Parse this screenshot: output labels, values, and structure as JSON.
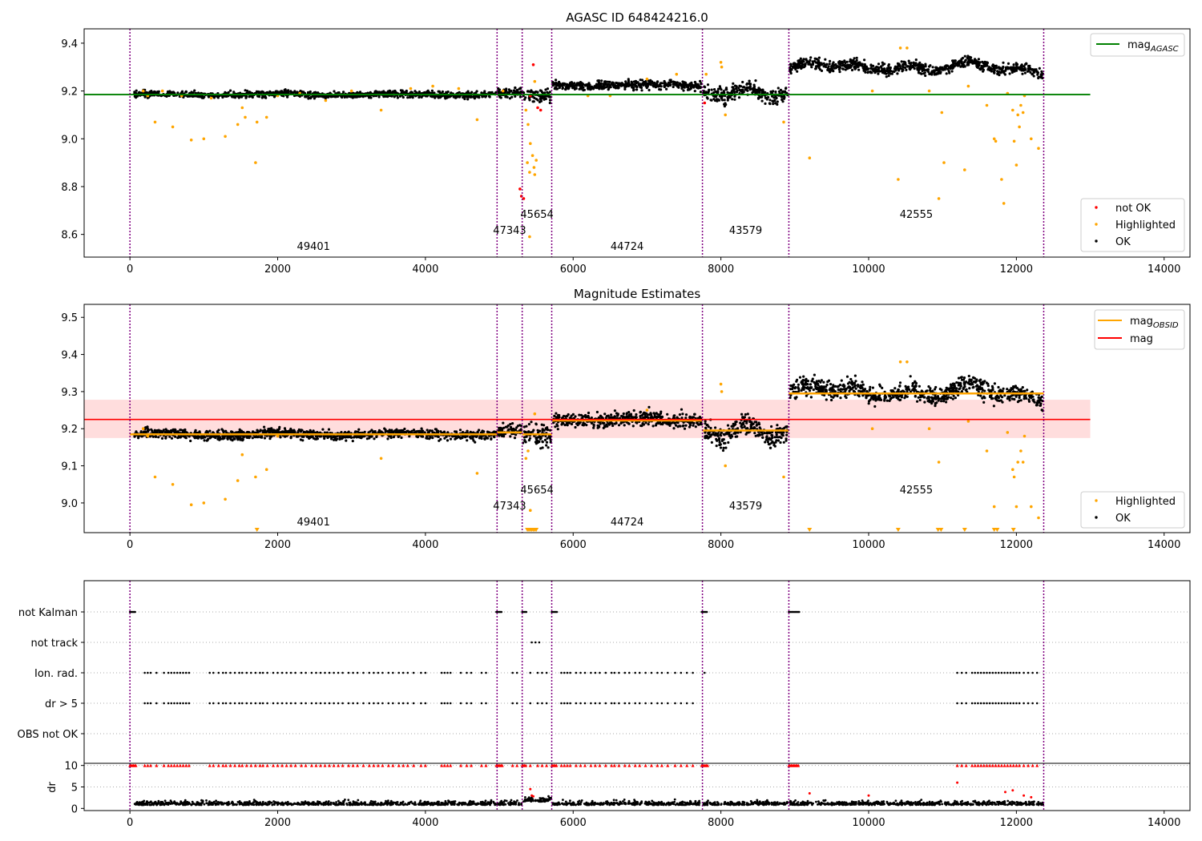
{
  "chart_data": [
    {
      "type": "scatter",
      "title": "AGASC ID 648424216.0",
      "xlim": [
        -620,
        14350
      ],
      "ylim": [
        8.505,
        9.46
      ],
      "x_ticks": [
        0,
        2000,
        4000,
        6000,
        8000,
        10000,
        12000,
        14000
      ],
      "y_ticks": [
        8.6,
        8.8,
        9.0,
        9.2,
        9.4
      ],
      "y_tick_labels": [
        "8.6",
        "8.8",
        "9.0",
        "9.2",
        "9.4"
      ],
      "obs_boundaries": [
        0,
        4970,
        5310,
        5710,
        7750,
        8920,
        12370
      ],
      "obsid_labels": [
        {
          "text": "49401",
          "x": 2485,
          "level": 0
        },
        {
          "text": "47343",
          "x": 5140,
          "level": 1
        },
        {
          "text": "45654",
          "x": 5510,
          "level": 2
        },
        {
          "text": "44724",
          "x": 6730,
          "level": 0
        },
        {
          "text": "43579",
          "x": 8335,
          "level": 1
        },
        {
          "text": "42555",
          "x": 10645,
          "level": 2
        }
      ],
      "reference_line": {
        "name": "mag_AGASC",
        "y": 9.185,
        "x": [
          -620,
          13000
        ],
        "color": "#008000"
      },
      "segments": [
        {
          "x": [
            60,
            4960
          ],
          "mean": 9.185,
          "spread": 0.012,
          "shape": "flat"
        },
        {
          "x": [
            4980,
            5300
          ],
          "mean": 9.19,
          "spread": 0.018,
          "shape": "flat"
        },
        {
          "x": [
            5320,
            5700
          ],
          "mean": 9.18,
          "spread": 0.03,
          "shape": "flat"
        },
        {
          "x": [
            5720,
            7740
          ],
          "mean": 9.225,
          "spread": 0.018,
          "shape": "flat"
        },
        {
          "x": [
            7760,
            8910
          ],
          "mean": 9.19,
          "spread": 0.03,
          "shape": "dip"
        },
        {
          "x": [
            8930,
            12360
          ],
          "mean": 9.295,
          "spread": 0.022,
          "shape": "wave"
        }
      ],
      "highlighted_points": [
        [
          180,
          9.2
        ],
        [
          240,
          9.18
        ],
        [
          340,
          9.07
        ],
        [
          440,
          9.2
        ],
        [
          580,
          9.05
        ],
        [
          700,
          9.18
        ],
        [
          830,
          8.995
        ],
        [
          1000,
          9.0
        ],
        [
          1100,
          9.17
        ],
        [
          1290,
          9.01
        ],
        [
          1460,
          9.06
        ],
        [
          1520,
          9.13
        ],
        [
          1560,
          9.09
        ],
        [
          1700,
          8.9
        ],
        [
          1720,
          9.07
        ],
        [
          1850,
          9.09
        ],
        [
          2000,
          9.18
        ],
        [
          2300,
          9.19
        ],
        [
          2650,
          9.16
        ],
        [
          3000,
          9.2
        ],
        [
          3400,
          9.12
        ],
        [
          3800,
          9.21
        ],
        [
          4100,
          9.22
        ],
        [
          4450,
          9.21
        ],
        [
          4700,
          9.08
        ],
        [
          5050,
          9.2
        ],
        [
          5360,
          9.12
        ],
        [
          5390,
          9.06
        ],
        [
          5420,
          8.98
        ],
        [
          5450,
          8.93
        ],
        [
          5380,
          8.9
        ],
        [
          5470,
          8.88
        ],
        [
          5410,
          8.86
        ],
        [
          5480,
          8.85
        ],
        [
          5500,
          8.91
        ],
        [
          5410,
          8.59
        ],
        [
          5480,
          9.24
        ],
        [
          6200,
          9.18
        ],
        [
          6500,
          9.18
        ],
        [
          7000,
          9.25
        ],
        [
          7400,
          9.27
        ],
        [
          7800,
          9.27
        ],
        [
          8000,
          9.32
        ],
        [
          8010,
          9.3
        ],
        [
          8060,
          9.1
        ],
        [
          8850,
          9.07
        ],
        [
          9200,
          8.92
        ],
        [
          10050,
          9.2
        ],
        [
          10400,
          8.83
        ],
        [
          10430,
          9.38
        ],
        [
          10520,
          9.38
        ],
        [
          10820,
          9.2
        ],
        [
          10950,
          8.75
        ],
        [
          10990,
          9.11
        ],
        [
          11020,
          8.9
        ],
        [
          11300,
          8.87
        ],
        [
          11350,
          9.22
        ],
        [
          11600,
          9.14
        ],
        [
          11700,
          9.0
        ],
        [
          11720,
          8.99
        ],
        [
          11800,
          8.83
        ],
        [
          11830,
          8.73
        ],
        [
          11880,
          9.19
        ],
        [
          11950,
          9.12
        ],
        [
          11970,
          8.99
        ],
        [
          12000,
          8.89
        ],
        [
          12020,
          9.1
        ],
        [
          12040,
          9.05
        ],
        [
          12060,
          9.14
        ],
        [
          12090,
          9.11
        ],
        [
          12110,
          9.18
        ],
        [
          12200,
          9.0
        ],
        [
          12300,
          8.96
        ]
      ],
      "not_ok_points": [
        [
          5280,
          8.79
        ],
        [
          5300,
          8.76
        ],
        [
          5330,
          8.75
        ],
        [
          5420,
          9.18
        ],
        [
          5460,
          9.31
        ],
        [
          5520,
          9.13
        ],
        [
          5560,
          9.12
        ],
        [
          7780,
          9.15
        ]
      ],
      "legend": {
        "position": "lower right",
        "entries": [
          "not OK",
          "Highlighted",
          "OK"
        ]
      }
    },
    {
      "type": "scatter",
      "title": "Magnitude Estimates",
      "xlim": [
        -620,
        14350
      ],
      "ylim": [
        8.92,
        9.535
      ],
      "x_ticks": [
        0,
        2000,
        4000,
        6000,
        8000,
        10000,
        12000,
        14000
      ],
      "y_ticks": [
        9.0,
        9.1,
        9.2,
        9.3,
        9.4,
        9.5
      ],
      "y_tick_labels": [
        "9.0",
        "9.1",
        "9.2",
        "9.3",
        "9.4",
        "9.5"
      ],
      "obs_boundaries": [
        0,
        4970,
        5310,
        5710,
        7750,
        8920,
        12370
      ],
      "obsid_labels": [
        {
          "text": "49401",
          "x": 2485,
          "level": 0
        },
        {
          "text": "47343",
          "x": 5140,
          "level": 1
        },
        {
          "text": "45654",
          "x": 5510,
          "level": 2
        },
        {
          "text": "44724",
          "x": 6730,
          "level": 0
        },
        {
          "text": "43579",
          "x": 8335,
          "level": 1
        },
        {
          "text": "42555",
          "x": 10645,
          "level": 2
        }
      ],
      "mag_line": {
        "name": "mag",
        "y": 9.225,
        "band": [
          9.175,
          9.278
        ],
        "x": [
          -620,
          13000
        ],
        "color": "#ff0000",
        "band_color": "#ffdddd"
      },
      "obsid_mags": [
        {
          "x": [
            0,
            4970
          ],
          "mag": 9.185
        },
        {
          "x": [
            4970,
            5310
          ],
          "mag": 9.19
        },
        {
          "x": [
            5310,
            5710
          ],
          "mag": 9.185
        },
        {
          "x": [
            5710,
            7750
          ],
          "mag": 9.222
        },
        {
          "x": [
            7750,
            8920
          ],
          "mag": 9.195
        },
        {
          "x": [
            8920,
            12370
          ],
          "mag": 9.295
        }
      ],
      "segments": [
        {
          "x": [
            60,
            4960
          ],
          "mean": 9.185,
          "spread": 0.012,
          "shape": "flat"
        },
        {
          "x": [
            4980,
            5300
          ],
          "mean": 9.19,
          "spread": 0.018,
          "shape": "flat"
        },
        {
          "x": [
            5320,
            5700
          ],
          "mean": 9.18,
          "spread": 0.03,
          "shape": "flat"
        },
        {
          "x": [
            5720,
            7740
          ],
          "mean": 9.225,
          "spread": 0.018,
          "shape": "flat"
        },
        {
          "x": [
            7760,
            8910
          ],
          "mean": 9.19,
          "spread": 0.03,
          "shape": "dip"
        },
        {
          "x": [
            8930,
            12360
          ],
          "mean": 9.295,
          "spread": 0.022,
          "shape": "wave"
        }
      ],
      "highlighted_points": [
        [
          180,
          9.2
        ],
        [
          240,
          9.18
        ],
        [
          340,
          9.07
        ],
        [
          580,
          9.05
        ],
        [
          830,
          8.995
        ],
        [
          1000,
          9.0
        ],
        [
          1290,
          9.01
        ],
        [
          1460,
          9.06
        ],
        [
          1520,
          9.13
        ],
        [
          1700,
          9.07
        ],
        [
          1850,
          9.09
        ],
        [
          2000,
          9.18
        ],
        [
          3400,
          9.12
        ],
        [
          4700,
          9.08
        ],
        [
          5360,
          9.12
        ],
        [
          5390,
          9.14
        ],
        [
          5420,
          8.98
        ],
        [
          5480,
          9.24
        ],
        [
          7000,
          9.25
        ],
        [
          8000,
          9.32
        ],
        [
          8010,
          9.3
        ],
        [
          8060,
          9.1
        ],
        [
          8850,
          9.07
        ],
        [
          10050,
          9.2
        ],
        [
          10430,
          9.38
        ],
        [
          10520,
          9.38
        ],
        [
          10820,
          9.2
        ],
        [
          10950,
          9.11
        ],
        [
          11350,
          9.22
        ],
        [
          11600,
          9.14
        ],
        [
          11700,
          8.99
        ],
        [
          11880,
          9.19
        ],
        [
          11950,
          9.09
        ],
        [
          11970,
          9.07
        ],
        [
          12000,
          8.99
        ],
        [
          12020,
          9.11
        ],
        [
          12060,
          9.14
        ],
        [
          12090,
          9.11
        ],
        [
          12110,
          9.18
        ],
        [
          12200,
          8.99
        ],
        [
          12300,
          8.96
        ]
      ],
      "clipped_points_x": [
        1720,
        5380,
        5400,
        5420,
        5440,
        5460,
        5480,
        5500,
        9200,
        10400,
        10940,
        10980,
        11300,
        11700,
        11740,
        11960
      ],
      "legend": {
        "position": "lower right",
        "entries": [
          "Highlighted",
          "OK"
        ]
      },
      "legend_upper": {
        "position": "upper right",
        "entries": [
          "mag_OBSID",
          "mag"
        ]
      }
    },
    {
      "type": "scatter",
      "title": "",
      "xlim": [
        -620,
        14350
      ],
      "x_ticks": [
        0,
        2000,
        4000,
        6000,
        8000,
        10000,
        12000,
        14000
      ],
      "flag_rows": [
        "not Kalman",
        "not track",
        "Ion. rad.",
        "dr > 5",
        "OBS not OK"
      ],
      "obs_boundaries": [
        0,
        4970,
        5310,
        5710,
        7750,
        8920,
        12370
      ],
      "not_kalman_x": [
        [
          0,
          80
        ],
        [
          4960,
          5040
        ],
        [
          5310,
          5370
        ],
        [
          5710,
          5780
        ],
        [
          7740,
          7820
        ],
        [
          8920,
          9060
        ]
      ],
      "not_track_x": [
        5440,
        5490,
        5540
      ],
      "ion_rad_x": [
        200,
        240,
        280,
        360,
        460,
        520,
        560,
        600,
        640,
        680,
        720,
        760,
        800,
        1080,
        1130,
        1200,
        1260,
        1300,
        1360,
        1420,
        1480,
        1520,
        1580,
        1640,
        1700,
        1760,
        1800,
        1860,
        1940,
        2000,
        2060,
        2120,
        2180,
        2240,
        2320,
        2380,
        2460,
        2520,
        2580,
        2640,
        2700,
        2760,
        2820,
        2880,
        2960,
        3020,
        3080,
        3160,
        3240,
        3300,
        3360,
        3420,
        3500,
        3560,
        3640,
        3700,
        3760,
        3840,
        3940,
        4000,
        4220,
        4260,
        4300,
        4340,
        4480,
        4560,
        4620,
        4760,
        4820,
        5180,
        5240,
        5420,
        5520,
        5580,
        5640,
        5840,
        5880,
        5920,
        5960,
        6040,
        6100,
        6160,
        6240,
        6300,
        6360,
        6440,
        6520,
        6560,
        6620,
        6700,
        6760,
        6840,
        6900,
        6980,
        7060,
        7140,
        7200,
        7280,
        7380,
        7460,
        7540,
        7620,
        7780,
        11200,
        11260,
        11320,
        11400,
        11440,
        11480,
        11520,
        11560,
        11600,
        11640,
        11680,
        11720,
        11760,
        11800,
        11840,
        11880,
        11920,
        11960,
        12000,
        12040,
        12100,
        12160,
        12220,
        12280
      ],
      "dr5_x": [
        200,
        240,
        280,
        360,
        460,
        520,
        560,
        600,
        640,
        680,
        720,
        760,
        800,
        1080,
        1130,
        1200,
        1260,
        1300,
        1360,
        1420,
        1480,
        1520,
        1580,
        1640,
        1700,
        1760,
        1800,
        1860,
        1940,
        2000,
        2060,
        2120,
        2180,
        2240,
        2320,
        2380,
        2460,
        2520,
        2580,
        2640,
        2700,
        2760,
        2820,
        2880,
        2960,
        3020,
        3080,
        3160,
        3240,
        3300,
        3360,
        3420,
        3500,
        3560,
        3640,
        3700,
        3760,
        3840,
        3940,
        4000,
        4220,
        4260,
        4300,
        4340,
        4480,
        4560,
        4620,
        4760,
        4820,
        5180,
        5240,
        5420,
        5520,
        5580,
        5640,
        5840,
        5880,
        5920,
        5960,
        6040,
        6100,
        6160,
        6240,
        6300,
        6360,
        6440,
        6520,
        6560,
        6620,
        6700,
        6760,
        6840,
        6900,
        6980,
        7060,
        7140,
        7200,
        7280,
        7380,
        7460,
        7540,
        7620,
        11200,
        11260,
        11320,
        11400,
        11440,
        11480,
        11520,
        11560,
        11600,
        11640,
        11680,
        11720,
        11760,
        11800,
        11840,
        11880,
        11920,
        11960,
        12000,
        12040,
        12100,
        12160,
        12220,
        12280
      ]
    },
    {
      "type": "scatter",
      "title": "",
      "ylabel": "dr",
      "xlim": [
        -620,
        14350
      ],
      "ylim": [
        -0.5,
        10.5
      ],
      "x_ticks": [
        0,
        2000,
        4000,
        6000,
        8000,
        10000,
        12000,
        14000
      ],
      "y_ticks": [
        0,
        5,
        10
      ],
      "obs_boundaries": [
        0,
        4970,
        5310,
        5710,
        7750,
        8920,
        12370
      ],
      "dr_mean": 0.8,
      "dr_outliers": [
        [
          5420,
          4.5
        ],
        [
          5440,
          3.0
        ],
        [
          5460,
          2.8
        ],
        [
          9200,
          3.5
        ],
        [
          10000,
          3.0
        ],
        [
          11200,
          6.0
        ],
        [
          11850,
          3.8
        ],
        [
          11950,
          4.2
        ],
        [
          12100,
          3.0
        ],
        [
          12200,
          2.6
        ]
      ]
    }
  ],
  "legend_labels": {
    "mag_agasc": "mag",
    "mag_agasc_sub": "AGASC",
    "mag_obsid": "mag",
    "mag_obsid_sub": "OBSID",
    "mag": "mag",
    "not_ok": "not OK",
    "highlighted": "Highlighted",
    "ok": "OK"
  },
  "colors": {
    "ok": "#000000",
    "highlighted": "#ffa500",
    "not_ok": "#ff0000",
    "boundary": "#800080",
    "agasc_line": "#008000",
    "obsid_line": "#ffa500",
    "mag_line": "#ff0000",
    "mag_band": "#ffdddd"
  }
}
